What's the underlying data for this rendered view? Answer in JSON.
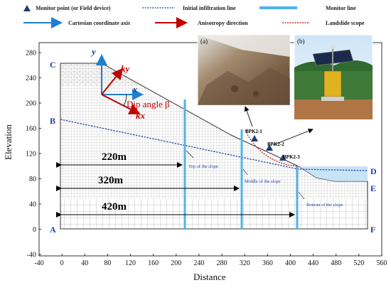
{
  "legend": {
    "monitor_point": "Monitor point (or Field device)",
    "infiltration_line": "Initial infiltration line",
    "monitor_line": "Monitor line",
    "cartesian_axis": "Cartesian coordinate axis",
    "anisotropy": "Anisotropy direction",
    "landslide_scope": "Landslide scope"
  },
  "axes": {
    "xlabel": "Distance",
    "ylabel": "Elevation",
    "x_ticks": [
      "-40",
      "0",
      "40",
      "80",
      "120",
      "160",
      "200",
      "240",
      "280",
      "320",
      "360",
      "400",
      "440",
      "480",
      "520",
      "560"
    ],
    "y_ticks": [
      "280",
      "240",
      "200",
      "160",
      "120",
      "80",
      "40",
      "0",
      "-40"
    ]
  },
  "points": {
    "A": "A",
    "B": "B",
    "C": "C",
    "D": "D",
    "E": "E",
    "F": "F"
  },
  "dimensions": {
    "d220": "220m",
    "d320": "320m",
    "d420": "420m"
  },
  "monitor_labels": {
    "top": "Top of the slope",
    "middle": "Middle of the slope",
    "bottom": "Bottom of the slope"
  },
  "monitor_points": {
    "p1": "BPK2-1",
    "p2": "BPK2-2",
    "p3": "BPK2-3"
  },
  "coordinate": {
    "y": "y",
    "x": "x",
    "ky": "ky",
    "kx": "kx",
    "dip": "Dip angle β"
  },
  "photos": {
    "a": "(a)",
    "b": "(b)"
  },
  "colors": {
    "blue": "#1f3fa8",
    "light_blue": "#4fb3e8",
    "red": "#c00000"
  }
}
